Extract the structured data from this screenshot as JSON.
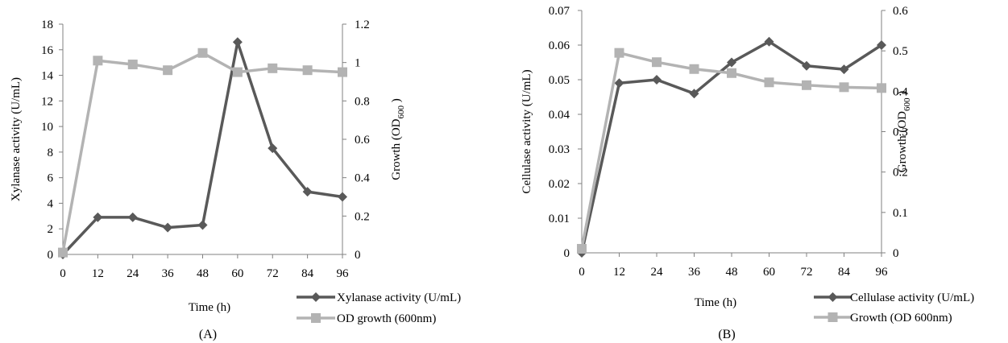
{
  "chart_data": [
    {
      "type": "line",
      "panel_label": "(A)",
      "x": [
        0,
        12,
        24,
        36,
        48,
        60,
        72,
        84,
        96
      ],
      "x_tick_labels": [
        "0",
        "12",
        "24",
        "36",
        "48",
        "60",
        "72",
        "84",
        "96"
      ],
      "xlabel": "Time (h)",
      "ylabel_left": "Xylanase activity (U/mL)",
      "ylabel_right_main": "Growth (OD",
      "ylabel_right_sub": "600",
      "ylabel_right_close": " )",
      "ylim_left": [
        0,
        18
      ],
      "ylim_right": [
        0,
        1.2
      ],
      "y_left_ticks": [
        "0",
        "2",
        "4",
        "6",
        "8",
        "10",
        "12",
        "14",
        "16",
        "18"
      ],
      "y_right_ticks": [
        "0",
        "0.2",
        "0.4",
        "0.6",
        "0.8",
        "1",
        "1.2"
      ],
      "grid": false,
      "legend_position": "bottom-right",
      "series": [
        {
          "name": "Xylanase activity (U/mL)",
          "axis": "left",
          "marker": "diamond",
          "color": "#595959",
          "values": [
            0,
            2.9,
            2.9,
            2.1,
            2.3,
            16.6,
            8.3,
            4.9,
            4.5
          ]
        },
        {
          "name": "OD growth (600nm)",
          "axis": "right",
          "marker": "square",
          "color": "#B3B3B3",
          "values": [
            0.01,
            1.01,
            0.99,
            0.96,
            1.05,
            0.95,
            0.97,
            0.96,
            0.95
          ]
        }
      ]
    },
    {
      "type": "line",
      "panel_label": "(B)",
      "x": [
        0,
        12,
        24,
        36,
        48,
        60,
        72,
        84,
        96
      ],
      "x_tick_labels": [
        "0",
        "12",
        "24",
        "36",
        "48",
        "60",
        "72",
        "84",
        "96"
      ],
      "xlabel": "Time (h)",
      "ylabel_left": "Cellulase activity (U/mL)",
      "ylabel_right_main": "Growth (OD",
      "ylabel_right_sub": "600",
      "ylabel_right_close": " )",
      "ylim_left": [
        0,
        0.07
      ],
      "ylim_right": [
        0,
        0.6
      ],
      "y_left_ticks": [
        "0",
        "0.01",
        "0.02",
        "0.03",
        "0.04",
        "0.05",
        "0.06",
        "0.07"
      ],
      "y_right_ticks": [
        "0",
        "0.1",
        "0.2",
        "0.3",
        "0.4",
        "0.5",
        "0.6"
      ],
      "grid": false,
      "legend_position": "bottom-right",
      "series": [
        {
          "name": "Cellulase activity (U/mL)",
          "axis": "left",
          "marker": "diamond",
          "color": "#595959",
          "values": [
            0,
            0.049,
            0.05,
            0.046,
            0.055,
            0.061,
            0.054,
            0.053,
            0.06
          ]
        },
        {
          "name": "Growth (OD 600nm)",
          "axis": "right",
          "marker": "square",
          "color": "#B3B3B3",
          "values": [
            0.01,
            0.495,
            0.472,
            0.455,
            0.445,
            0.422,
            0.415,
            0.41,
            0.408
          ]
        }
      ]
    }
  ]
}
